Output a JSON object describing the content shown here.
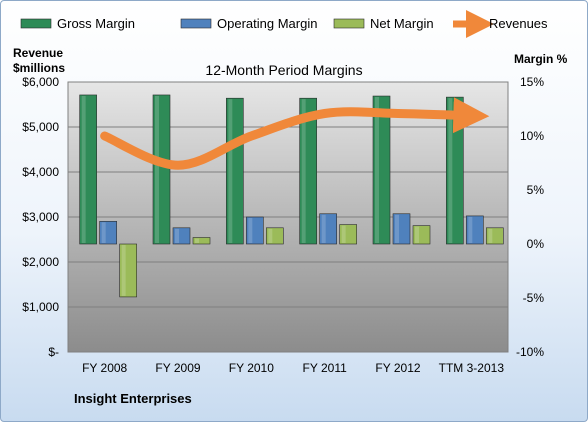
{
  "chart_data": {
    "type": "bar",
    "title": "12-Month Period Margins",
    "categories": [
      "FY 2008",
      "FY 2009",
      "FY 2010",
      "FY 2011",
      "FY 2012",
      "TTM 3-2013"
    ],
    "series": [
      {
        "name": "Gross Margin",
        "axis": "right",
        "kind": "bar",
        "color": "#2e8b57",
        "values": [
          13.8,
          13.8,
          13.5,
          13.5,
          13.7,
          13.6
        ]
      },
      {
        "name": "Operating Margin",
        "axis": "right",
        "kind": "bar",
        "color": "#4f81bd",
        "values": [
          2.1,
          1.5,
          2.5,
          2.8,
          2.8,
          2.6
        ]
      },
      {
        "name": "Net Margin",
        "axis": "right",
        "kind": "bar",
        "color": "#9bbb59",
        "values": [
          -4.9,
          0.6,
          1.5,
          1.8,
          1.7,
          1.5
        ]
      },
      {
        "name": "Revenues",
        "axis": "left",
        "kind": "line",
        "color": "#f0883a",
        "values": [
          4800,
          4150,
          4800,
          5300,
          5300,
          5250
        ]
      }
    ],
    "ylabel_left_lines": [
      "Revenue",
      "$millions"
    ],
    "ylabel_right": "Margin %",
    "yticks_left": [
      "$-",
      "$1,000",
      "$2,000",
      "$3,000",
      "$4,000",
      "$5,000",
      "$6,000"
    ],
    "yticks_right": [
      "-10%",
      "-5%",
      "0%",
      "5%",
      "10%",
      "15%"
    ],
    "ylim_left": [
      0,
      6000
    ],
    "ylim_right": [
      -10,
      15
    ],
    "legend_position": "top",
    "grid": true
  },
  "footer": "Insight Enterprises"
}
